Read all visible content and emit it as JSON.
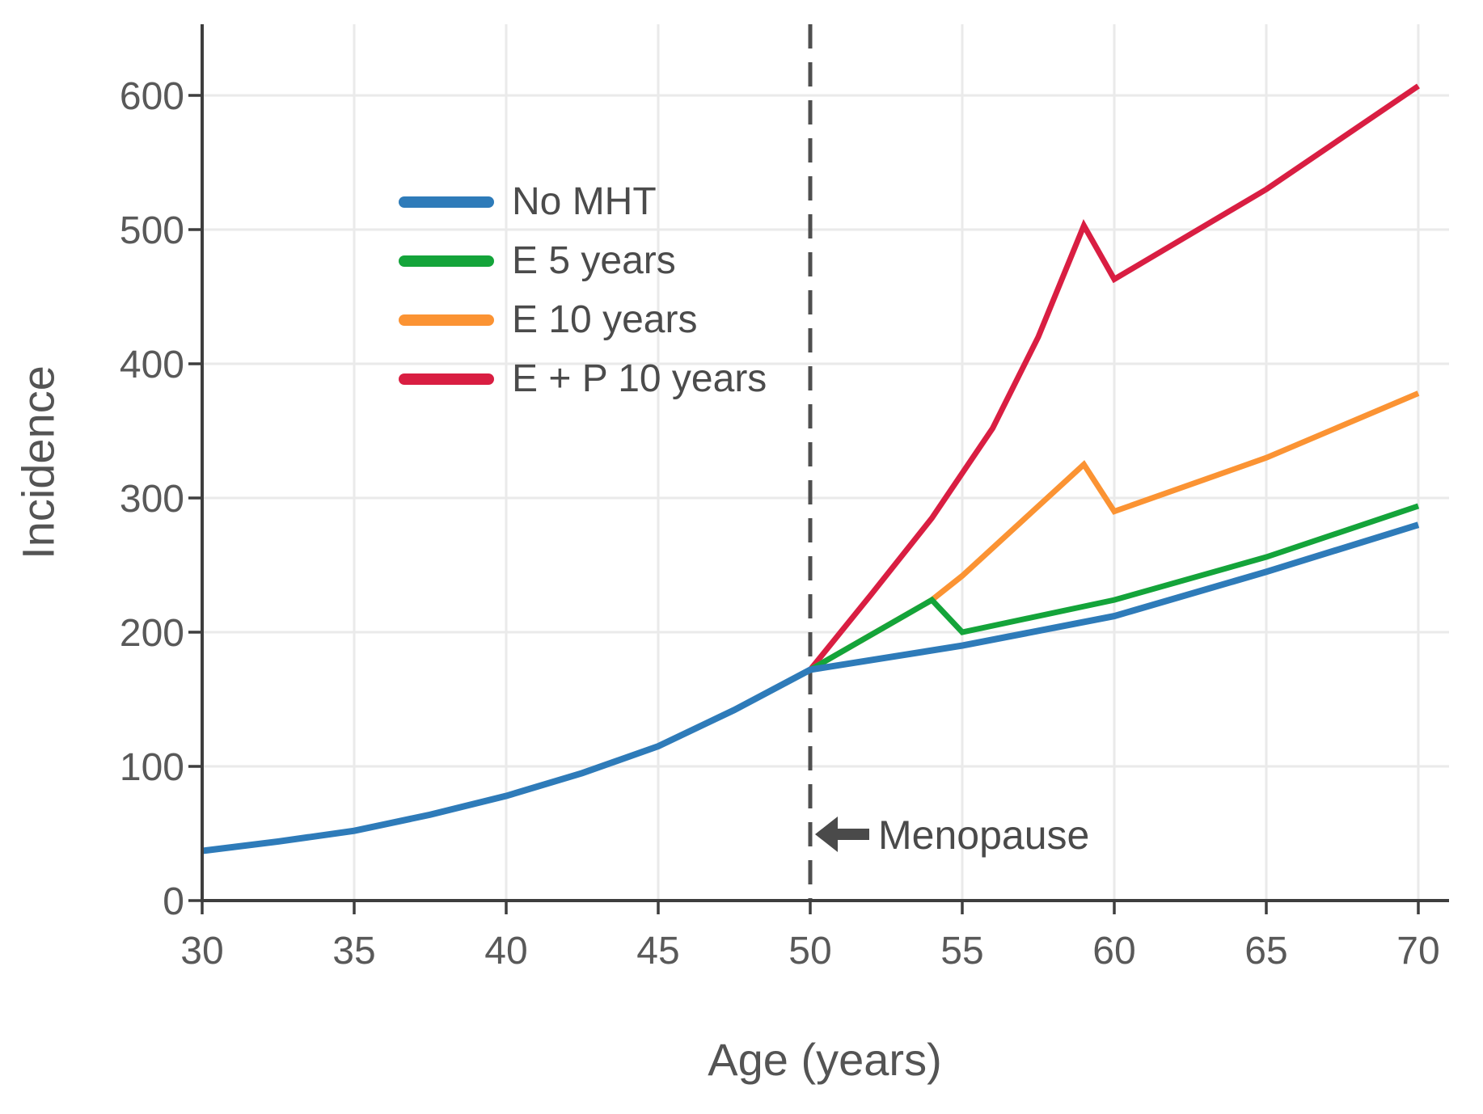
{
  "chart_data": {
    "type": "line",
    "title": "",
    "xlabel": "Age (years)",
    "ylabel": "Incidence",
    "x_ticks": [
      30,
      35,
      40,
      45,
      50,
      55,
      60,
      65,
      70
    ],
    "y_ticks": [
      0,
      100,
      200,
      300,
      400,
      500,
      600
    ],
    "xlim": [
      30,
      71
    ],
    "ylim": [
      0,
      650
    ],
    "grid": true,
    "legend_position": "upper left inside plot",
    "series": [
      {
        "name": "No MHT",
        "color": "#2e7bb9",
        "x": [
          30,
          32.5,
          35,
          37.5,
          40,
          42.5,
          45,
          47.5,
          50,
          55,
          60,
          65,
          70
        ],
        "values": [
          37,
          44,
          52,
          64,
          78,
          95,
          115,
          142,
          172,
          190,
          212,
          245,
          280
        ]
      },
      {
        "name": "E 5 years",
        "color": "#14a43a",
        "x": [
          50,
          54,
          55,
          60,
          65,
          70
        ],
        "values": [
          172,
          224,
          200,
          224,
          256,
          294
        ]
      },
      {
        "name": "E 10 years",
        "color": "#fb9333",
        "x": [
          50,
          54,
          55,
          59,
          60,
          65,
          70
        ],
        "values": [
          172,
          224,
          242,
          325,
          290,
          330,
          378
        ]
      },
      {
        "name": "E + P 10 years",
        "color": "#d91e42",
        "x": [
          50,
          52,
          54,
          56,
          57.5,
          59,
          60,
          65,
          70
        ],
        "values": [
          172,
          228,
          285,
          352,
          420,
          503,
          463,
          530,
          607
        ]
      }
    ],
    "annotation": {
      "text": "Menopause",
      "line_x": 50,
      "line_style": "dashed",
      "arrow_direction": "left"
    },
    "colors": {
      "grid": "#eaeaea",
      "axis": "#3e3e3e",
      "tick_label": "#595959",
      "dashed_line": "#4f4f4f",
      "annotation": "#4a4a4a"
    }
  }
}
